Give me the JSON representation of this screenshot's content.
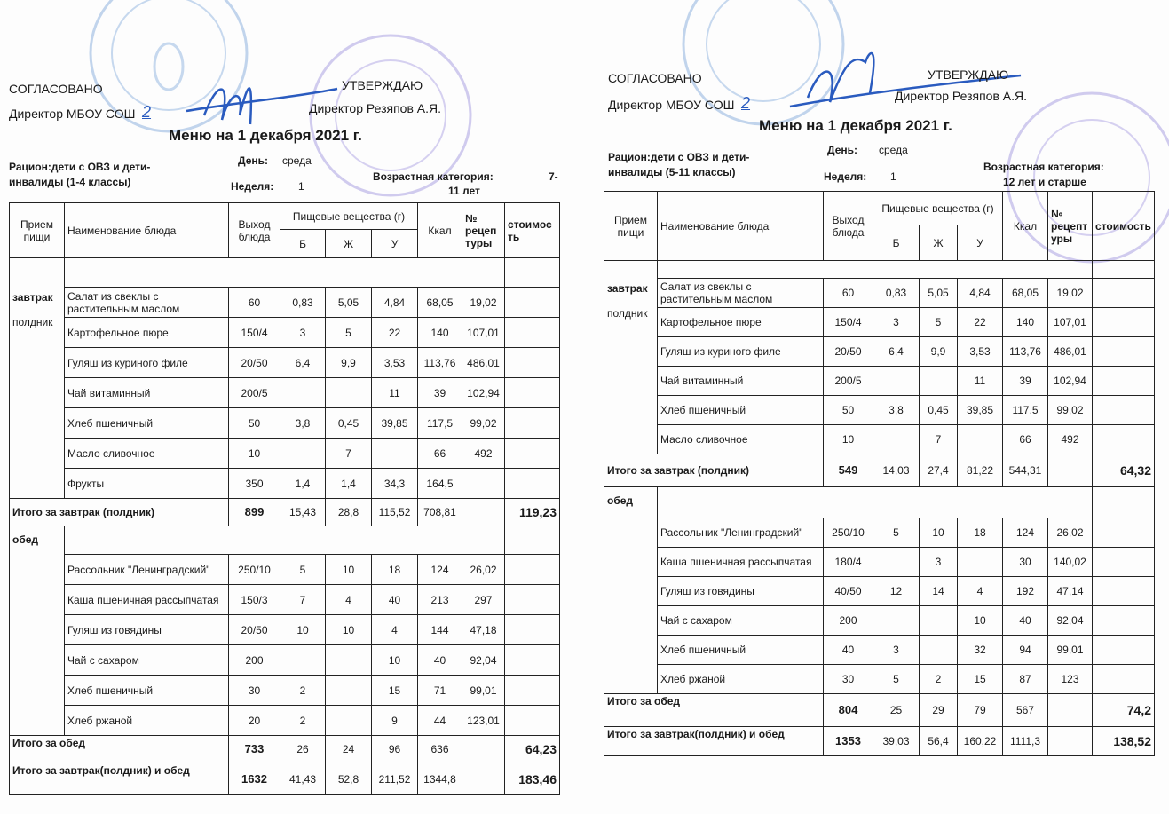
{
  "menus": [
    {
      "agreed_label": "СОГЛАСОВАНО",
      "agreed_by": "Директор МБОУ СОШ",
      "school_no": "2",
      "approved_label": "УТВЕРЖДАЮ",
      "approved_by": "Директор Резяпов А.Я.",
      "title": "Меню на 1 декабря  2021 г.",
      "ration_line1": "Рацион:дети с ОВЗ и дети-",
      "ration_line2": "инвалиды (1-4 классы)",
      "day_label": "День:",
      "day": "среда",
      "week_label": "Неделя:",
      "week": "1",
      "age_label": "Возрастная категория:",
      "age_line1": "7-",
      "age_line2": "11 лет",
      "headers": {
        "meal": "Прием пищи",
        "name": "Наименование блюда",
        "yield": "Выход блюда",
        "nutrients": "Пищевые вещества (г)",
        "b": "Б",
        "zh": "Ж",
        "u": "У",
        "kcal": "Ккал",
        "recipe": "№ рецеп туры",
        "cost": "стоимость"
      },
      "sections": [
        {
          "meal": "завтрак",
          "meal2": "полдник",
          "items": [
            {
              "name": "Салат из свеклы с растительным маслом",
              "yield": "60",
              "b": "0,83",
              "zh": "5,05",
              "u": "4,84",
              "kcal": "68,05",
              "recipe": "19,02",
              "cost": ""
            },
            {
              "name": "Картофельное пюре",
              "yield": "150/4",
              "b": "3",
              "zh": "5",
              "u": "22",
              "kcal": "140",
              "recipe": "107,01",
              "cost": ""
            },
            {
              "name": "Гуляш из куриного филе",
              "yield": "20/50",
              "b": "6,4",
              "zh": "9,9",
              "u": "3,53",
              "kcal": "113,76",
              "recipe": "486,01",
              "cost": ""
            },
            {
              "name": "Чай витаминный",
              "yield": "200/5",
              "b": "",
              "zh": "",
              "u": "11",
              "kcal": "39",
              "recipe": "102,94",
              "cost": ""
            },
            {
              "name": "Хлеб пшеничный",
              "yield": "50",
              "b": "3,8",
              "zh": "0,45",
              "u": "39,85",
              "kcal": "117,5",
              "recipe": "99,02",
              "cost": ""
            },
            {
              "name": "Масло сливочное",
              "yield": "10",
              "b": "",
              "zh": "7",
              "u": "",
              "kcal": "66",
              "recipe": "492",
              "cost": ""
            },
            {
              "name": "Фрукты",
              "yield": "350",
              "b": "1,4",
              "zh": "1,4",
              "u": "34,3",
              "kcal": "164,5",
              "recipe": "",
              "cost": ""
            }
          ],
          "total": {
            "label": "Итого за завтрак (полдник)",
            "yield": "899",
            "b": "15,43",
            "zh": "28,8",
            "u": "115,52",
            "kcal": "708,81",
            "recipe": "",
            "cost": "119,23"
          }
        },
        {
          "meal": "обед",
          "meal2": "",
          "items": [
            {
              "name": "Рассольник \"Ленинградский\"",
              "yield": "250/10",
              "b": "5",
              "zh": "10",
              "u": "18",
              "kcal": "124",
              "recipe": "26,02",
              "cost": ""
            },
            {
              "name": "Каша пшеничная рассыпчатая",
              "yield": "150/3",
              "b": "7",
              "zh": "4",
              "u": "40",
              "kcal": "213",
              "recipe": "297",
              "cost": ""
            },
            {
              "name": "Гуляш из говядины",
              "yield": "20/50",
              "b": "10",
              "zh": "10",
              "u": "4",
              "kcal": "144",
              "recipe": "47,18",
              "cost": ""
            },
            {
              "name": "Чай с сахаром",
              "yield": "200",
              "b": "",
              "zh": "",
              "u": "10",
              "kcal": "40",
              "recipe": "92,04",
              "cost": ""
            },
            {
              "name": "Хлеб пшеничный",
              "yield": "30",
              "b": "2",
              "zh": "",
              "u": "15",
              "kcal": "71",
              "recipe": "99,01",
              "cost": ""
            },
            {
              "name": "Хлеб ржаной",
              "yield": "20",
              "b": "2",
              "zh": "",
              "u": "9",
              "kcal": "44",
              "recipe": "123,01",
              "cost": ""
            }
          ],
          "total": {
            "label": "Итого за обед",
            "yield": "733",
            "b": "26",
            "zh": "24",
            "u": "96",
            "kcal": "636",
            "recipe": "",
            "cost": "64,23"
          }
        }
      ],
      "grand_total": {
        "label": "Итого за завтрак(полдник) и обед",
        "yield": "1632",
        "b": "41,43",
        "zh": "52,8",
        "u": "211,52",
        "kcal": "1344,8",
        "recipe": "",
        "cost": "183,46"
      }
    },
    {
      "agreed_label": "СОГЛАСОВАНО",
      "agreed_by": "Директор МБОУ СОШ",
      "school_no": "2",
      "approved_label": "УТВЕРЖДАЮ",
      "approved_by": "Директор Резяпов А.Я.",
      "title": "Меню на 1 декабря  2021 г.",
      "ration_line1": "Рацион:дети с ОВЗ и дети-",
      "ration_line2": "инвалиды (5-11 классы)",
      "day_label": "День:",
      "day": "среда",
      "week_label": "Неделя:",
      "week": "1",
      "age_label": "Возрастная категория:",
      "age_line1": "",
      "age_line2": "12 лет и старше",
      "headers": {
        "meal": "Прием пищи",
        "name": "Наименование блюда",
        "yield": "Выход блюда",
        "nutrients": "Пищевые вещества (г)",
        "b": "Б",
        "zh": "Ж",
        "u": "У",
        "kcal": "Ккал",
        "recipe": "№ рецепт уры",
        "cost": "стоимость"
      },
      "sections": [
        {
          "meal": "завтрак",
          "meal2": "полдник",
          "items": [
            {
              "name": "Салат из свеклы с растительным маслом",
              "yield": "60",
              "b": "0,83",
              "zh": "5,05",
              "u": "4,84",
              "kcal": "68,05",
              "recipe": "19,02",
              "cost": ""
            },
            {
              "name": "Картофельное пюре",
              "yield": "150/4",
              "b": "3",
              "zh": "5",
              "u": "22",
              "kcal": "140",
              "recipe": "107,01",
              "cost": ""
            },
            {
              "name": "Гуляш из куриного филе",
              "yield": "20/50",
              "b": "6,4",
              "zh": "9,9",
              "u": "3,53",
              "kcal": "113,76",
              "recipe": "486,01",
              "cost": ""
            },
            {
              "name": "Чай витаминный",
              "yield": "200/5",
              "b": "",
              "zh": "",
              "u": "11",
              "kcal": "39",
              "recipe": "102,94",
              "cost": ""
            },
            {
              "name": "Хлеб пшеничный",
              "yield": "50",
              "b": "3,8",
              "zh": "0,45",
              "u": "39,85",
              "kcal": "117,5",
              "recipe": "99,02",
              "cost": ""
            },
            {
              "name": "Масло сливочное",
              "yield": "10",
              "b": "",
              "zh": "7",
              "u": "",
              "kcal": "66",
              "recipe": "492",
              "cost": ""
            }
          ],
          "total": {
            "label": "Итого за завтрак (полдник)",
            "yield": "549",
            "b": "14,03",
            "zh": "27,4",
            "u": "81,22",
            "kcal": "544,31",
            "recipe": "",
            "cost": "64,32"
          }
        },
        {
          "meal": "обед",
          "meal2": "",
          "items": [
            {
              "name": "Рассольник \"Ленинградский\"",
              "yield": "250/10",
              "b": "5",
              "zh": "10",
              "u": "18",
              "kcal": "124",
              "recipe": "26,02",
              "cost": ""
            },
            {
              "name": "Каша пшеничная рассыпчатая",
              "yield": "180/4",
              "b": "",
              "zh": "3",
              "u": "",
              "kcal": "30",
              "recipe": "140,02",
              "cost": ""
            },
            {
              "name": "Гуляш из говядины",
              "yield": "40/50",
              "b": "12",
              "zh": "14",
              "u": "4",
              "kcal": "192",
              "recipe": "47,14",
              "cost": ""
            },
            {
              "name": "Чай с сахаром",
              "yield": "200",
              "b": "",
              "zh": "",
              "u": "10",
              "kcal": "40",
              "recipe": "92,04",
              "cost": ""
            },
            {
              "name": "Хлеб пшеничный",
              "yield": "40",
              "b": "3",
              "zh": "",
              "u": "32",
              "kcal": "94",
              "recipe": "99,01",
              "cost": ""
            },
            {
              "name": "Хлеб ржаной",
              "yield": "30",
              "b": "5",
              "zh": "2",
              "u": "15",
              "kcal": "87",
              "recipe": "123",
              "cost": ""
            }
          ],
          "total": {
            "label": "Итого за обед",
            "yield": "804",
            "b": "25",
            "zh": "29",
            "u": "79",
            "kcal": "567",
            "recipe": "",
            "cost": "74,2"
          }
        }
      ],
      "grand_total": {
        "label": "Итого за завтрак(полдник) и обед",
        "yield": "1353",
        "b": "39,03",
        "zh": "56,4",
        "u": "160,22",
        "kcal": "1111,3",
        "recipe": "",
        "cost": "138,52"
      }
    }
  ],
  "colors": {
    "ink": "#1a1a1a",
    "stamp_blue": "#7fa8d8",
    "stamp_purple": "#9a8fd6",
    "signature": "#2a5bbf"
  }
}
